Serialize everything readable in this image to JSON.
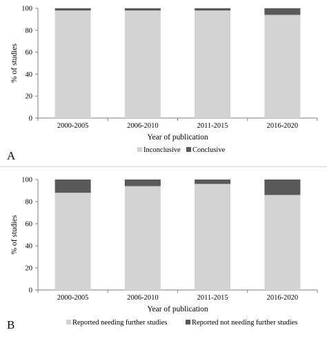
{
  "colors": {
    "inconclusive": "#d3d3d3",
    "conclusive": "#595959",
    "axis": "#7f7f7f"
  },
  "chart_data": [
    {
      "panel": "A",
      "type": "bar",
      "stacked": true,
      "categories": [
        "2000-2005",
        "2006-2010",
        "2011-2015",
        "2016-2020"
      ],
      "series": [
        {
          "name": "Inconclusive",
          "values": [
            98,
            98,
            98,
            94
          ]
        },
        {
          "name": "Conclusive",
          "values": [
            2,
            2,
            2,
            6
          ]
        }
      ],
      "xlabel": "Year of publication",
      "ylabel": "% of studies",
      "ylim": [
        0,
        100
      ],
      "yticks": [
        0,
        20,
        40,
        60,
        80,
        100
      ],
      "grid": false,
      "legend": "bottom"
    },
    {
      "panel": "B",
      "type": "bar",
      "stacked": true,
      "categories": [
        "2000-2005",
        "2006-2010",
        "2011-2015",
        "2016-2020"
      ],
      "series": [
        {
          "name": "Reported needing further studies",
          "values": [
            88,
            94,
            96,
            86
          ]
        },
        {
          "name": "Reported not needing further studies",
          "values": [
            12,
            6,
            4,
            14
          ]
        }
      ],
      "xlabel": "Year of publication",
      "ylabel": "% of studies",
      "ylim": [
        0,
        100
      ],
      "yticks": [
        0,
        20,
        40,
        60,
        80,
        100
      ],
      "grid": false,
      "legend": "bottom"
    }
  ]
}
